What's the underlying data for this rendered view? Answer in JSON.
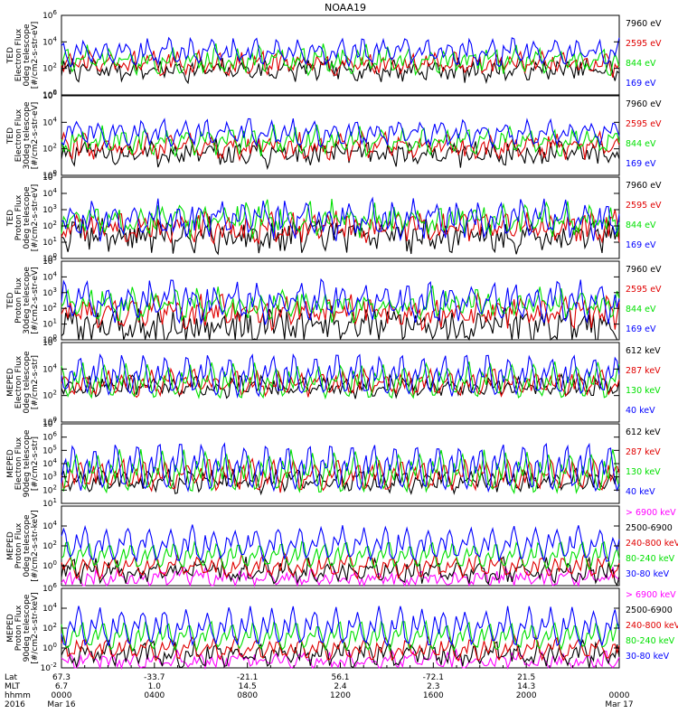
{
  "title": "NOAA19",
  "colors": {
    "black": "#000000",
    "red": "#e00000",
    "green": "#00e000",
    "blue": "#0000ff",
    "magenta": "#ff00ff",
    "frame": "#000000"
  },
  "chart_data": [
    {
      "type": "line",
      "scale": "log",
      "instrument": "TED",
      "quantity": "Electron Flux",
      "telescope": "0deg telescope",
      "unit": "[#/cm2-s-str-eV]",
      "ylim": [
        1,
        1000000
      ],
      "yticks": [
        {
          "label": "10",
          "exp": "0"
        },
        {
          "label": "10",
          "exp": "2"
        },
        {
          "label": "10",
          "exp": "4"
        },
        {
          "label": "10",
          "exp": "6"
        }
      ],
      "series": [
        {
          "name": "7960 eV",
          "color": "#000000",
          "base": 30,
          "peak": 300,
          "noise": 0.6
        },
        {
          "name": "2595 eV",
          "color": "#e00000",
          "base": 60,
          "peak": 1500,
          "noise": 0.5
        },
        {
          "name": "844 eV",
          "color": "#00e000",
          "base": 80,
          "peak": 5000,
          "noise": 0.5
        },
        {
          "name": "169 eV",
          "color": "#0000ff",
          "base": 300,
          "peak": 20000,
          "noise": 0.4
        }
      ]
    },
    {
      "type": "line",
      "scale": "log",
      "instrument": "TED",
      "quantity": "Electron Flux",
      "telescope": "30deg telescope",
      "unit": "[#/cm2-s-str-eV]",
      "ylim": [
        1,
        1000000
      ],
      "yticks": [
        {
          "label": "10",
          "exp": "0"
        },
        {
          "label": "10",
          "exp": "2"
        },
        {
          "label": "10",
          "exp": "4"
        },
        {
          "label": "10",
          "exp": "6"
        }
      ],
      "series": [
        {
          "name": "7960 eV",
          "color": "#000000",
          "base": 15,
          "peak": 200,
          "noise": 0.7
        },
        {
          "name": "2595 eV",
          "color": "#e00000",
          "base": 40,
          "peak": 1000,
          "noise": 0.6
        },
        {
          "name": "844 eV",
          "color": "#00e000",
          "base": 70,
          "peak": 4000,
          "noise": 0.5
        },
        {
          "name": "169 eV",
          "color": "#0000ff",
          "base": 300,
          "peak": 20000,
          "noise": 0.4
        }
      ]
    },
    {
      "type": "line",
      "scale": "log",
      "instrument": "TED",
      "quantity": "Proton Flux",
      "telescope": "0deg telescope",
      "unit": "[#/cm2-s-str-eV]",
      "ylim": [
        1,
        100000
      ],
      "yticks": [
        {
          "label": "10",
          "exp": "0"
        },
        {
          "label": "10",
          "exp": "1"
        },
        {
          "label": "10",
          "exp": "2"
        },
        {
          "label": "10",
          "exp": "3"
        },
        {
          "label": "10",
          "exp": "4"
        },
        {
          "label": "10",
          "exp": "5"
        }
      ],
      "series": [
        {
          "name": "7960 eV",
          "color": "#000000",
          "base": 10,
          "peak": 100,
          "noise": 0.8
        },
        {
          "name": "2595 eV",
          "color": "#e00000",
          "base": 25,
          "peak": 500,
          "noise": 0.6
        },
        {
          "name": "844 eV",
          "color": "#00e000",
          "base": 50,
          "peak": 2000,
          "noise": 0.6
        },
        {
          "name": "169 eV",
          "color": "#0000ff",
          "base": 30,
          "peak": 5000,
          "noise": 0.5
        }
      ]
    },
    {
      "type": "line",
      "scale": "log",
      "instrument": "TED",
      "quantity": "Proton Flux",
      "telescope": "30deg telescope",
      "unit": "[#/cm2-s-str-eV]",
      "ylim": [
        1,
        100000
      ],
      "yticks": [
        {
          "label": "10",
          "exp": "0"
        },
        {
          "label": "10",
          "exp": "1"
        },
        {
          "label": "10",
          "exp": "2"
        },
        {
          "label": "10",
          "exp": "3"
        },
        {
          "label": "10",
          "exp": "4"
        },
        {
          "label": "10",
          "exp": "5"
        }
      ],
      "series": [
        {
          "name": "7960 eV",
          "color": "#000000",
          "base": 3,
          "peak": 30,
          "noise": 0.9
        },
        {
          "name": "2595 eV",
          "color": "#e00000",
          "base": 20,
          "peak": 300,
          "noise": 0.7
        },
        {
          "name": "844 eV",
          "color": "#00e000",
          "base": 40,
          "peak": 1500,
          "noise": 0.6
        },
        {
          "name": "169 eV",
          "color": "#0000ff",
          "base": 25,
          "peak": 8000,
          "noise": 0.5
        }
      ]
    },
    {
      "type": "line",
      "scale": "log",
      "instrument": "MEPED",
      "quantity": "Electron Flux",
      "telescope": "0deg telescope",
      "unit": "[#/cm2-s-str]",
      "ylim": [
        1,
        1000000
      ],
      "yticks": [
        {
          "label": "10",
          "exp": "0"
        },
        {
          "label": "10",
          "exp": "2"
        },
        {
          "label": "10",
          "exp": "4"
        },
        {
          "label": "10",
          "exp": "6"
        }
      ],
      "series": [
        {
          "name": "612 keV",
          "color": "#000000",
          "base": 150,
          "peak": 2000,
          "noise": 0.5
        },
        {
          "name": "287 keV",
          "color": "#e00000",
          "base": 150,
          "peak": 10000,
          "noise": 0.4
        },
        {
          "name": "130 keV",
          "color": "#00e000",
          "base": 100,
          "peak": 50000,
          "noise": 0.3
        },
        {
          "name": "40 keV",
          "color": "#0000ff",
          "base": 150,
          "peak": 300000,
          "noise": 0.3
        }
      ]
    },
    {
      "type": "line",
      "scale": "log",
      "instrument": "MEPED",
      "quantity": "Electron Flux",
      "telescope": "90deg telescope",
      "unit": "[#/cm2-s-str]",
      "ylim": [
        10,
        10000000
      ],
      "yticks": [
        {
          "label": "10",
          "exp": "1"
        },
        {
          "label": "10",
          "exp": "2"
        },
        {
          "label": "10",
          "exp": "3"
        },
        {
          "label": "10",
          "exp": "4"
        },
        {
          "label": "10",
          "exp": "5"
        },
        {
          "label": "10",
          "exp": "6"
        },
        {
          "label": "10",
          "exp": "7"
        }
      ],
      "series": [
        {
          "name": "612 keV",
          "color": "#000000",
          "base": 150,
          "peak": 3000,
          "noise": 0.5
        },
        {
          "name": "287 keV",
          "color": "#e00000",
          "base": 150,
          "peak": 30000,
          "noise": 0.4
        },
        {
          "name": "130 keV",
          "color": "#00e000",
          "base": 100,
          "peak": 200000,
          "noise": 0.3
        },
        {
          "name": "40 keV",
          "color": "#0000ff",
          "base": 150,
          "peak": 1000000,
          "noise": 0.3
        }
      ]
    },
    {
      "type": "line",
      "scale": "log",
      "instrument": "MEPED",
      "quantity": "Proton Flux",
      "telescope": "0deg telescope",
      "unit": "[#/cm2-s-str-keV]",
      "ylim": [
        0.01,
        1000000
      ],
      "yticks": [
        {
          "label": "10",
          "exp": "0"
        },
        {
          "label": "10",
          "exp": "2"
        },
        {
          "label": "10",
          "exp": "4"
        }
      ],
      "series": [
        {
          "name": "> 6900 keV",
          "color": "#ff00ff",
          "base": 0.02,
          "peak": 0.3,
          "noise": 0.6
        },
        {
          "name": "2500-6900",
          "color": "#000000",
          "base": 0.05,
          "peak": 3,
          "noise": 0.8
        },
        {
          "name": "240-800 keV",
          "color": "#e00000",
          "base": 0.1,
          "peak": 20,
          "noise": 0.4
        },
        {
          "name": "80-240 keV",
          "color": "#00e000",
          "base": 0.8,
          "peak": 500,
          "noise": 0.3
        },
        {
          "name": "30-80 keV",
          "color": "#0000ff",
          "base": 5,
          "peak": 20000,
          "noise": 0.4
        }
      ]
    },
    {
      "type": "line",
      "scale": "log",
      "instrument": "MEPED",
      "quantity": "Proton Flux",
      "telescope": "90deg telescope",
      "unit": "[#/cm2-s-str-keV]",
      "ylim": [
        0.01,
        1000000
      ],
      "yticks": [
        {
          "label": "10",
          "exp": "-2"
        },
        {
          "label": "10",
          "exp": "0"
        },
        {
          "label": "10",
          "exp": "2"
        },
        {
          "label": "10",
          "exp": "4"
        },
        {
          "label": "10",
          "exp": "6"
        }
      ],
      "series": [
        {
          "name": "> 6900 keV",
          "color": "#ff00ff",
          "base": 0.02,
          "peak": 0.3,
          "noise": 0.6
        },
        {
          "name": "2500-6900",
          "color": "#000000",
          "base": 0.05,
          "peak": 3,
          "noise": 0.8
        },
        {
          "name": "240-800 keV",
          "color": "#e00000",
          "base": 0.1,
          "peak": 20,
          "noise": 0.4
        },
        {
          "name": "80-240 keV",
          "color": "#00e000",
          "base": 1,
          "peak": 1000,
          "noise": 0.3
        },
        {
          "name": "30-80 keV",
          "color": "#0000ff",
          "base": 3,
          "peak": 30000,
          "noise": 0.4
        }
      ]
    }
  ],
  "time_axis": {
    "row_labels": [
      "Lat",
      "MLT",
      "hhmm",
      "2016"
    ],
    "ticks": [
      {
        "lat": "67.3",
        "mlt": "6.7",
        "hhmm": "0000",
        "date": "Mar 16"
      },
      {
        "lat": "-33.7",
        "mlt": "1.0",
        "hhmm": "0400",
        "date": ""
      },
      {
        "lat": "-21.1",
        "mlt": "14.5",
        "hhmm": "0800",
        "date": ""
      },
      {
        "lat": "56.1",
        "mlt": "2.4",
        "hhmm": "1200",
        "date": ""
      },
      {
        "lat": "-72.1",
        "mlt": "2.3",
        "hhmm": "1600",
        "date": ""
      },
      {
        "lat": "21.5",
        "mlt": "14.3",
        "hhmm": "2000",
        "date": ""
      },
      {
        "lat": "",
        "mlt": "",
        "hhmm": "0000",
        "date": "Mar 17"
      }
    ]
  }
}
